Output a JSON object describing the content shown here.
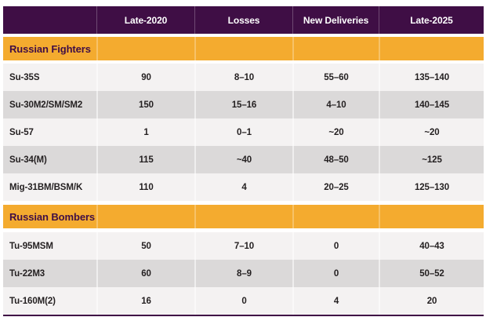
{
  "chart_data": {
    "type": "table",
    "columns": [
      "",
      "Late-2020",
      "Losses",
      "New Deliveries",
      "Late-2025"
    ],
    "sections": [
      {
        "title": "Russian Fighters",
        "rows": [
          {
            "label": "Su-35S",
            "values": [
              "90",
              "8–10",
              "55–60",
              "135–140"
            ]
          },
          {
            "label": "Su-30M2/SM/SM2",
            "values": [
              "150",
              "15–16",
              "4–10",
              "140–145"
            ]
          },
          {
            "label": "Su-57",
            "values": [
              "1",
              "0–1",
              "~20",
              "~20"
            ]
          },
          {
            "label": "Su-34(M)",
            "values": [
              "115",
              "~40",
              "48–50",
              "~125"
            ]
          },
          {
            "label": "Mig-31BM/BSM/K",
            "values": [
              "110",
              "4",
              "20–25",
              "125–130"
            ]
          }
        ]
      },
      {
        "title": "Russian Bombers",
        "rows": [
          {
            "label": "Tu-95MSM",
            "values": [
              "50",
              "7–10",
              "0",
              "40–43"
            ]
          },
          {
            "label": "Tu-22M3",
            "values": [
              "60",
              "8–9",
              "0",
              "50–52"
            ]
          },
          {
            "label": "Tu-160M(2)",
            "values": [
              "16",
              "0",
              "4",
              "20"
            ]
          }
        ]
      }
    ],
    "layout_hints": {
      "legend": "none",
      "grid": "row-striped",
      "value_alignment": "center"
    },
    "colors": {
      "header_bg": "#3F0E45",
      "header_text": "#FFFFFF",
      "section_bg": "#F4AB2F",
      "section_text": "#3F0E45",
      "row_light": "#F4F2F2",
      "row_dark": "#DBD9D9",
      "body_text": "#231F20",
      "bottom_rule": "#3F0E45"
    }
  }
}
